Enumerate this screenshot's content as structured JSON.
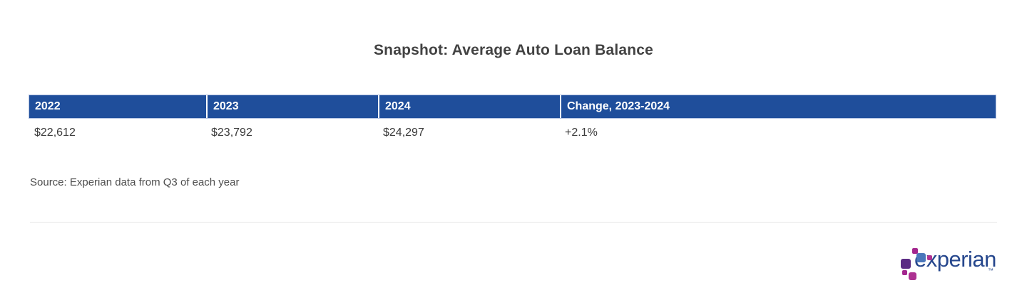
{
  "chart_data": {
    "type": "table",
    "title": "Snapshot: Average Auto Loan Balance",
    "columns": [
      "2022",
      "2023",
      "2024",
      "Change, 2023-2024"
    ],
    "rows": [
      [
        "$22,612",
        "$23,792",
        "$24,297",
        "+2.1%"
      ]
    ],
    "numeric_values": {
      "2022": 22612,
      "2023": 23792,
      "2024": 24297,
      "change_2023_2024_percent": 2.1
    },
    "source_note": "Source: Experian data from Q3 of each year",
    "layout_hints": {
      "header_style": "navy band with white bold labels",
      "grid": "none",
      "one_data_row": true
    }
  },
  "logo": {
    "wordmark": "experian",
    "trademark": "™"
  },
  "colors": {
    "header_bg": "#1F4E9B",
    "header_text": "#FFFFFF",
    "header_border": "#B5C4E3",
    "title_text": "#424242",
    "body_text": "#3A3A3A",
    "source_text": "#4D4D4D",
    "divider": "#E7E7E7",
    "logo_dark_blue": "#26478D",
    "logo_light_blue": "#4A77BB",
    "logo_magenta": "#A3268E",
    "logo_pink": "#B03391",
    "logo_purple": "#5B2A84"
  }
}
